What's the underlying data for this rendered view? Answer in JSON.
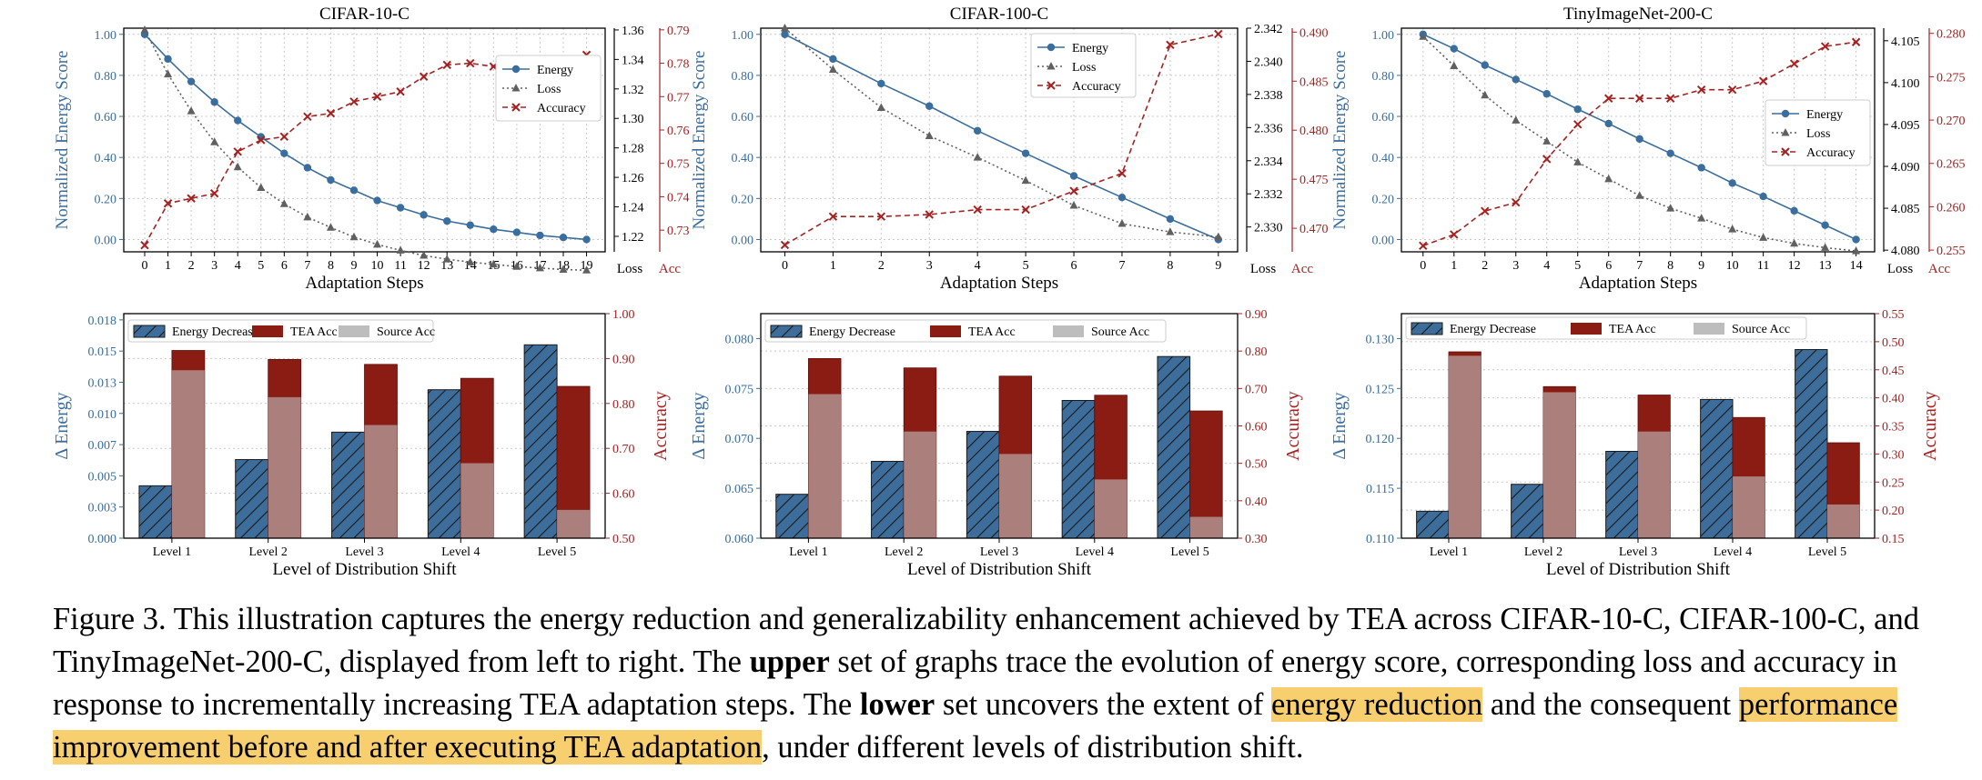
{
  "colors": {
    "energy": "#3a6e9e",
    "loss": "#606060",
    "accuracy": "#a32222",
    "bar_energy": "#3d6d9a",
    "bar_tea": "#8b1c13",
    "bar_source": "#bdbdbd",
    "highlight": "#f7cf6e"
  },
  "chart_data": [
    {
      "id": "cifar10-steps",
      "type": "line",
      "title": "CIFAR-10-C",
      "xlabel": "Adaptation Steps",
      "ylabel_left": "Normalized Energy Score",
      "ylabel_loss": "Loss",
      "ylabel_acc": "Acc",
      "x": [
        0,
        1,
        2,
        3,
        4,
        5,
        6,
        7,
        8,
        9,
        10,
        11,
        12,
        13,
        14,
        15,
        16,
        17,
        18,
        19
      ],
      "xlim": [
        -0.9,
        19.8
      ],
      "left_axis": {
        "lim": [
          -0.06,
          1.03
        ],
        "ticks": [
          0.0,
          0.2,
          0.4,
          0.6,
          0.8,
          1.0
        ],
        "labels": [
          "0.00",
          "0.20",
          "0.40",
          "0.60",
          "0.80",
          "1.00"
        ]
      },
      "loss_axis": {
        "lim": [
          1.2095,
          1.3612
        ],
        "ticks": [
          1.22,
          1.24,
          1.26,
          1.28,
          1.3,
          1.32,
          1.34,
          1.36
        ],
        "labels": [
          "1.22",
          "1.24",
          "1.26",
          "1.28",
          "1.30",
          "1.32",
          "1.34",
          "1.36"
        ]
      },
      "acc_axis": {
        "lim": [
          0.7235,
          0.7905
        ],
        "ticks": [
          0.73,
          0.74,
          0.75,
          0.76,
          0.77,
          0.78,
          0.79
        ],
        "labels": [
          "0.73",
          "0.74",
          "0.75",
          "0.76",
          "0.77",
          "0.78",
          "0.79"
        ]
      },
      "legend": {
        "position": "center-right",
        "entries": [
          "Energy",
          "Loss",
          "Accuracy"
        ]
      },
      "series": [
        {
          "name": "Energy",
          "axis": "left",
          "marker": "circle",
          "values": [
            1.0,
            0.88,
            0.77,
            0.67,
            0.58,
            0.5,
            0.42,
            0.35,
            0.29,
            0.24,
            0.19,
            0.155,
            0.12,
            0.09,
            0.07,
            0.05,
            0.035,
            0.02,
            0.01,
            0.0
          ]
        },
        {
          "name": "Loss",
          "axis": "loss",
          "marker": "triangle",
          "values": [
            1.36,
            1.33,
            1.305,
            1.284,
            1.267,
            1.253,
            1.242,
            1.233,
            1.226,
            1.2195,
            1.2145,
            1.2105,
            1.207,
            1.2045,
            1.2025,
            1.201,
            1.1995,
            1.1985,
            1.1975,
            1.197
          ]
        },
        {
          "name": "Accuracy",
          "axis": "acc",
          "marker": "x",
          "values": [
            0.7255,
            0.738,
            0.7395,
            0.741,
            0.7535,
            0.757,
            0.758,
            0.764,
            0.765,
            0.7685,
            0.77,
            0.7715,
            0.776,
            0.7795,
            0.78,
            0.779,
            0.779,
            0.779,
            0.7795,
            0.7825
          ]
        }
      ]
    },
    {
      "id": "cifar100-steps",
      "type": "line",
      "title": "CIFAR-100-C",
      "xlabel": "Adaptation Steps",
      "ylabel_left": "Normalized Energy Score",
      "ylabel_loss": "Loss",
      "ylabel_acc": "Acc",
      "x": [
        0,
        1,
        2,
        3,
        4,
        5,
        6,
        7,
        8,
        9
      ],
      "xlim": [
        -0.5,
        9.4
      ],
      "left_axis": {
        "lim": [
          -0.06,
          1.03
        ],
        "ticks": [
          0.0,
          0.2,
          0.4,
          0.6,
          0.8,
          1.0
        ],
        "labels": [
          "0.00",
          "0.20",
          "0.40",
          "0.60",
          "0.80",
          "1.00"
        ]
      },
      "loss_axis": {
        "lim": [
          2.3285,
          2.342
        ],
        "ticks": [
          2.33,
          2.332,
          2.334,
          2.336,
          2.338,
          2.34,
          2.342
        ],
        "labels": [
          "2.330",
          "2.332",
          "2.334",
          "2.336",
          "2.338",
          "2.340",
          "2.342"
        ]
      },
      "acc_axis": {
        "lim": [
          0.4676,
          0.4904
        ],
        "ticks": [
          0.47,
          0.475,
          0.48,
          0.485,
          0.49
        ],
        "labels": [
          "0.470",
          "0.475",
          "0.480",
          "0.485",
          "0.490"
        ]
      },
      "legend": {
        "position": "top-center",
        "entries": [
          "Energy",
          "Loss",
          "Accuracy"
        ]
      },
      "series": [
        {
          "name": "Energy",
          "axis": "left",
          "marker": "circle",
          "values": [
            1.0,
            0.88,
            0.76,
            0.65,
            0.53,
            0.42,
            0.31,
            0.205,
            0.1,
            0.0
          ]
        },
        {
          "name": "Loss",
          "axis": "loss",
          "marker": "triangle",
          "values": [
            2.342,
            2.3395,
            2.3372,
            2.3355,
            2.3342,
            2.3328,
            2.3313,
            2.3302,
            2.3297,
            2.3294
          ]
        },
        {
          "name": "Accuracy",
          "axis": "acc",
          "marker": "x",
          "values": [
            0.4683,
            0.4712,
            0.4712,
            0.4714,
            0.4719,
            0.4719,
            0.4738,
            0.4756,
            0.4887,
            0.4898
          ]
        }
      ]
    },
    {
      "id": "tiny-steps",
      "type": "line",
      "title": "TinyImageNet-200-C",
      "xlabel": "Adaptation Steps",
      "ylabel_left": "Normalized Energy Score",
      "ylabel_loss": "Loss",
      "ylabel_acc": "Acc",
      "x": [
        0,
        1,
        2,
        3,
        4,
        5,
        6,
        7,
        8,
        9,
        10,
        11,
        12,
        13,
        14
      ],
      "xlim": [
        -0.7,
        14.6
      ],
      "left_axis": {
        "lim": [
          -0.06,
          1.03
        ],
        "ticks": [
          0.0,
          0.2,
          0.4,
          0.6,
          0.8,
          1.0
        ],
        "labels": [
          "0.00",
          "0.20",
          "0.40",
          "0.60",
          "0.80",
          "1.00"
        ]
      },
      "loss_axis": {
        "lim": [
          4.0798,
          4.1065
        ],
        "ticks": [
          4.08,
          4.085,
          4.09,
          4.095,
          4.1,
          4.105
        ],
        "labels": [
          "4.080",
          "4.085",
          "4.090",
          "4.095",
          "4.100",
          "4.105"
        ]
      },
      "acc_axis": {
        "lim": [
          0.2548,
          0.2806
        ],
        "ticks": [
          0.255,
          0.26,
          0.265,
          0.27,
          0.275,
          0.28
        ],
        "labels": [
          "0.255",
          "0.260",
          "0.265",
          "0.270",
          "0.275",
          "0.280"
        ]
      },
      "legend": {
        "position": "center-right",
        "entries": [
          "Energy",
          "Loss",
          "Accuracy"
        ]
      },
      "series": [
        {
          "name": "Energy",
          "axis": "left",
          "marker": "circle",
          "values": [
            1.0,
            0.93,
            0.85,
            0.78,
            0.71,
            0.635,
            0.565,
            0.49,
            0.42,
            0.35,
            0.275,
            0.21,
            0.14,
            0.07,
            0.0
          ]
        },
        {
          "name": "Loss",
          "axis": "loss",
          "marker": "triangle",
          "values": [
            4.1055,
            4.102,
            4.0985,
            4.0955,
            4.093,
            4.0905,
            4.0885,
            4.0865,
            4.085,
            4.0838,
            4.0825,
            4.0815,
            4.0808,
            4.0803,
            4.0799
          ]
        },
        {
          "name": "Accuracy",
          "axis": "acc",
          "marker": "x",
          "values": [
            0.2555,
            0.2568,
            0.2595,
            0.2605,
            0.2655,
            0.2695,
            0.2725,
            0.2725,
            0.2725,
            0.2735,
            0.2735,
            0.2745,
            0.2765,
            0.2785,
            0.279
          ]
        }
      ]
    },
    {
      "id": "cifar10-levels",
      "type": "bar",
      "xlabel": "Level of Distribution Shift",
      "ylabel_left": "Δ Energy",
      "ylabel_right": "Accuracy",
      "categories": [
        "Level 1",
        "Level 2",
        "Level 3",
        "Level 4",
        "Level 5"
      ],
      "left_axis": {
        "lim": [
          0,
          0.018
        ],
        "ticks": [
          0,
          0.0025,
          0.005,
          0.0075,
          0.01,
          0.0125,
          0.015,
          0.0175
        ],
        "labels": [
          "0.000",
          "0.003",
          "0.005",
          "0.007",
          "0.010",
          "0.013",
          "0.015",
          "0.018"
        ]
      },
      "right_axis": {
        "lim": [
          0.5,
          1.0
        ],
        "ticks": [
          0.5,
          0.6,
          0.7,
          0.8,
          0.9,
          1.0
        ],
        "labels": [
          "0.50",
          "0.60",
          "0.70",
          "0.80",
          "0.90",
          "1.00"
        ]
      },
      "legend": {
        "position": "top",
        "entries": [
          "Energy Decrease",
          "TEA Acc",
          "Source Acc"
        ]
      },
      "series": [
        {
          "name": "Energy Decrease",
          "axis": "left",
          "values": [
            0.0042,
            0.0063,
            0.0085,
            0.0119,
            0.0155
          ]
        },
        {
          "name": "TEA Acc",
          "axis": "right",
          "values": [
            0.918,
            0.898,
            0.887,
            0.856,
            0.838
          ]
        },
        {
          "name": "Source Acc",
          "axis": "right",
          "values": [
            0.874,
            0.814,
            0.752,
            0.667,
            0.563
          ]
        }
      ]
    },
    {
      "id": "cifar100-levels",
      "type": "bar",
      "xlabel": "Level of Distribution Shift",
      "ylabel_left": "Δ Energy",
      "ylabel_right": "Accuracy",
      "categories": [
        "Level 1",
        "Level 2",
        "Level 3",
        "Level 4",
        "Level 5"
      ],
      "left_axis": {
        "lim": [
          0.06,
          0.0825
        ],
        "ticks": [
          0.06,
          0.065,
          0.07,
          0.075,
          0.08
        ],
        "labels": [
          "0.060",
          "0.065",
          "0.070",
          "0.075",
          "0.080"
        ]
      },
      "right_axis": {
        "lim": [
          0.3,
          0.9
        ],
        "ticks": [
          0.3,
          0.4,
          0.5,
          0.6,
          0.7,
          0.8,
          0.9
        ],
        "labels": [
          "0.30",
          "0.40",
          "0.50",
          "0.60",
          "0.70",
          "0.80",
          "0.90"
        ]
      },
      "legend": {
        "position": "top",
        "entries": [
          "Energy Decrease",
          "TEA Acc",
          "Source Acc"
        ]
      },
      "series": [
        {
          "name": "Energy Decrease",
          "axis": "left",
          "values": [
            0.0644,
            0.0677,
            0.0707,
            0.0738,
            0.0782
          ]
        },
        {
          "name": "TEA Acc",
          "axis": "right",
          "values": [
            0.78,
            0.755,
            0.733,
            0.682,
            0.64
          ]
        },
        {
          "name": "Source Acc",
          "axis": "right",
          "values": [
            0.685,
            0.585,
            0.525,
            0.457,
            0.357
          ]
        }
      ]
    },
    {
      "id": "tiny-levels",
      "type": "bar",
      "xlabel": "Level of Distribution Shift",
      "ylabel_left": "Δ Energy",
      "ylabel_right": "Accuracy",
      "categories": [
        "Level 1",
        "Level 2",
        "Level 3",
        "Level 4",
        "Level 5"
      ],
      "left_axis": {
        "lim": [
          0.11,
          0.1325
        ],
        "ticks": [
          0.11,
          0.115,
          0.12,
          0.125,
          0.13
        ],
        "labels": [
          "0.110",
          "0.115",
          "0.120",
          "0.125",
          "0.130"
        ]
      },
      "right_axis": {
        "lim": [
          0.15,
          0.55
        ],
        "ticks": [
          0.15,
          0.2,
          0.25,
          0.3,
          0.35,
          0.4,
          0.45,
          0.5,
          0.55
        ],
        "labels": [
          "0.15",
          "0.20",
          "0.25",
          "0.30",
          "0.35",
          "0.40",
          "0.45",
          "0.50",
          "0.55"
        ]
      },
      "legend": {
        "position": "top",
        "entries": [
          "Energy Decrease",
          "TEA Acc",
          "Source Acc"
        ]
      },
      "series": [
        {
          "name": "Energy Decrease",
          "axis": "left",
          "values": [
            0.1127,
            0.1154,
            0.1187,
            0.1239,
            0.1289
          ]
        },
        {
          "name": "TEA Acc",
          "axis": "right",
          "values": [
            0.482,
            0.42,
            0.405,
            0.365,
            0.32
          ]
        },
        {
          "name": "Source Acc",
          "axis": "right",
          "values": [
            0.475,
            0.41,
            0.34,
            0.26,
            0.21
          ]
        }
      ]
    }
  ],
  "caption": {
    "p1": "Figure 3. This illustration captures the energy reduction and generalizability enhancement achieved by TEA across CIFAR-10-C, CIFAR-100-C, and TinyImageNet-200-C, displayed from left to right. The ",
    "b1": "upper",
    "p2": " set of graphs trace the evolution of energy score, corresponding loss and accuracy in response to incrementally increasing TEA adaptation steps. The ",
    "b2": "lower",
    "p3": " set uncovers the extent of ",
    "h1": "energy reduction",
    "p4": " and the consequent ",
    "h2": "performance improvement before and after executing TEA adaptation",
    "p5": ", under different levels of distribution shift."
  }
}
